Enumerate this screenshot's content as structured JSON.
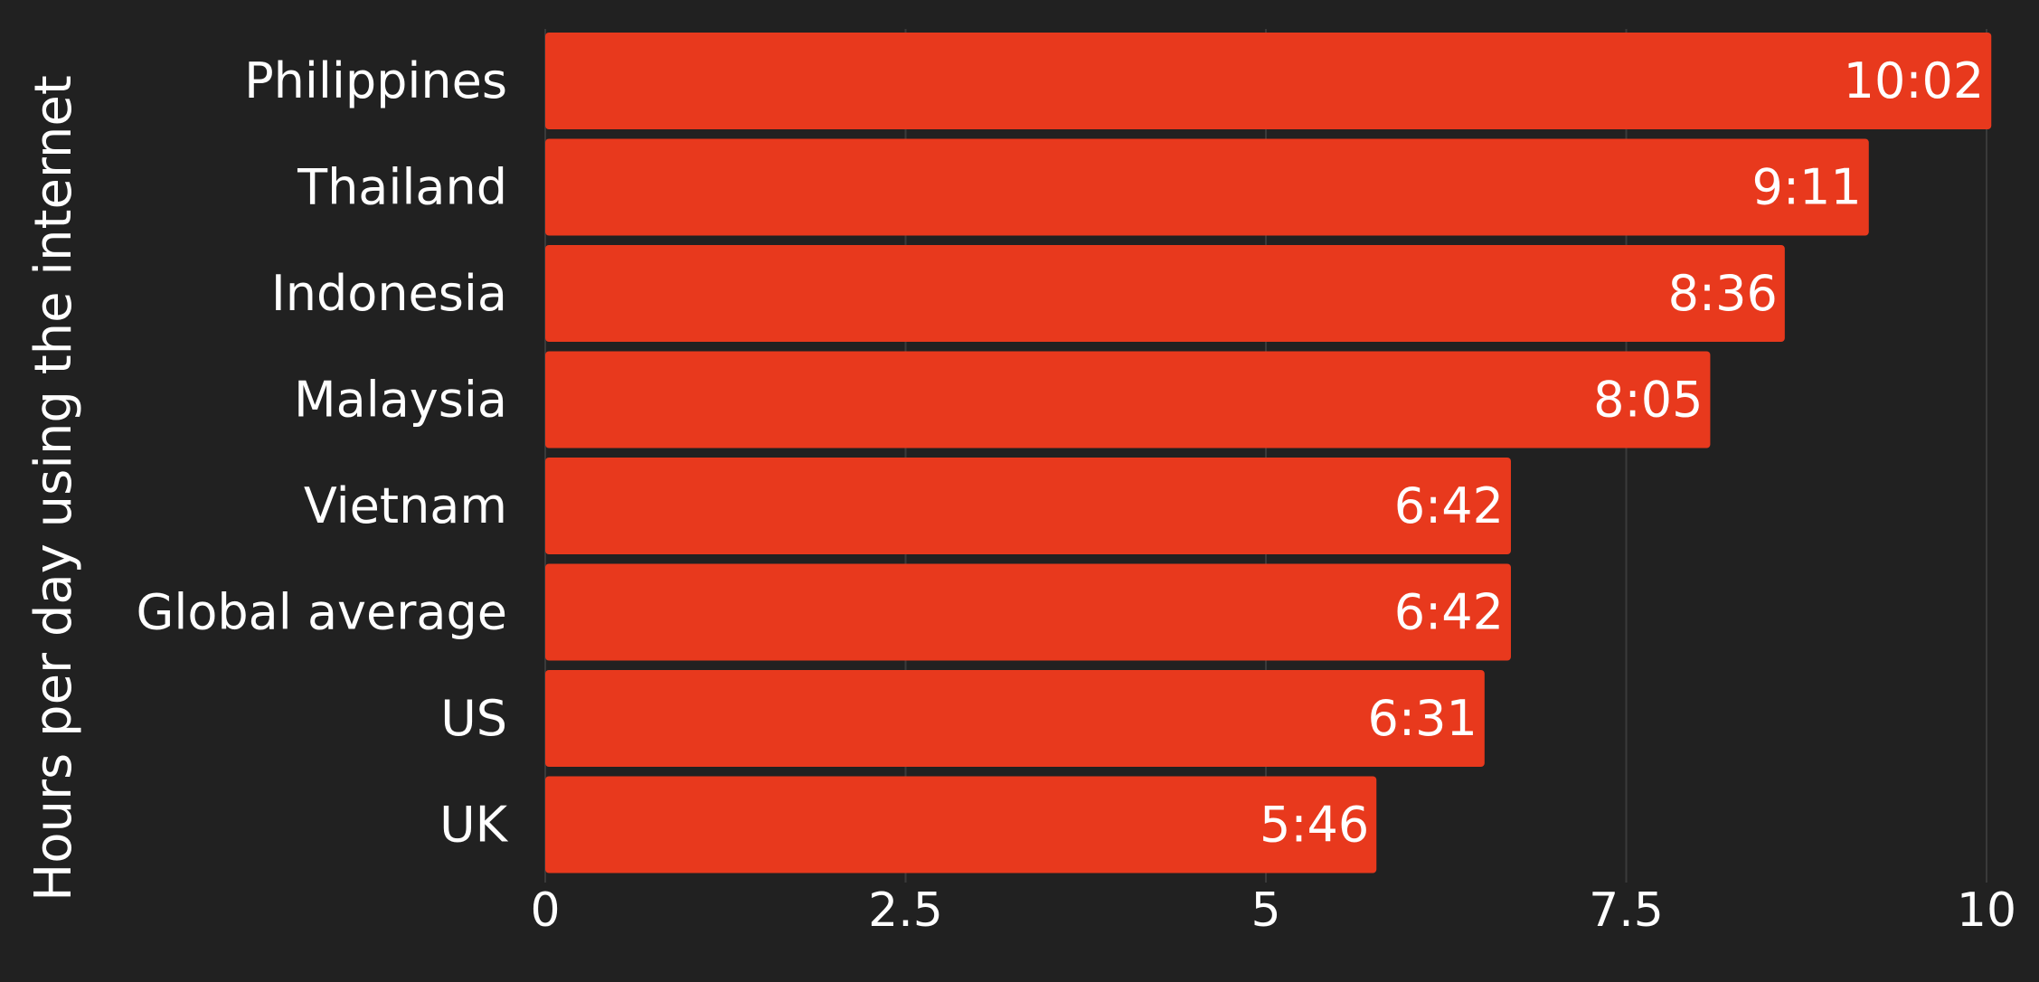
{
  "chart_data": {
    "type": "bar",
    "orientation": "horizontal",
    "ylabel": "Hours  per day using the internet",
    "categories": [
      "Philippines",
      "Thailand",
      "Indonesia",
      "Malaysia",
      "Vietnam",
      "Global average",
      "US",
      "UK"
    ],
    "values": [
      10.033,
      9.183,
      8.6,
      8.083,
      6.7,
      6.7,
      6.517,
      5.767
    ],
    "value_labels": [
      "10:02",
      "9:11",
      "8:36",
      "8:05",
      "6:42",
      "6:42",
      "6:31",
      "5:46"
    ],
    "xlim": [
      0,
      10
    ],
    "x_ticks": [
      0,
      2.5,
      5,
      7.5,
      10
    ],
    "x_tick_labels": [
      "0",
      "2.5",
      "5",
      "7.5",
      "10"
    ],
    "grid": "vertical",
    "colors": {
      "bar": "#E8391D",
      "background": "#212121",
      "text": "#FFFFFF",
      "grid": "#3A3A3A"
    }
  }
}
